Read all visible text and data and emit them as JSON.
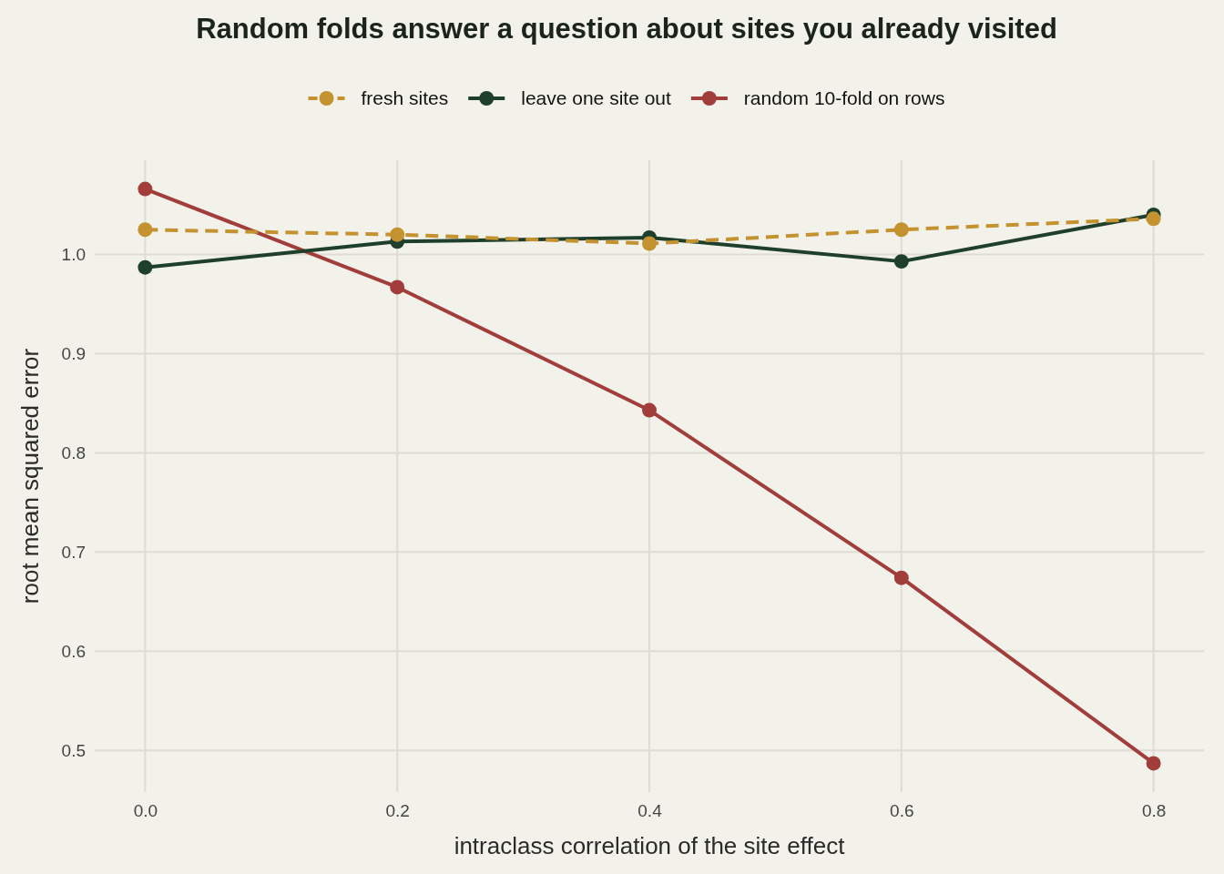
{
  "chart_data": {
    "type": "line",
    "title": "Random folds answer a question about sites you already visited",
    "xlabel": "intraclass correlation of the site effect",
    "ylabel": "root mean squared error",
    "x": [
      0,
      0.2,
      0.4,
      0.6,
      0.8
    ],
    "series": [
      {
        "name": "fresh sites",
        "color": "#c4922f",
        "line_style": "dashed",
        "values": [
          1.025,
          1.02,
          1.011,
          1.025,
          1.036
        ]
      },
      {
        "name": "leave one site out",
        "color": "#1f3f2d",
        "line_style": "solid",
        "values": [
          0.987,
          1.013,
          1.017,
          0.993,
          1.04
        ]
      },
      {
        "name": "random 10-fold on rows",
        "color": "#a13d3b",
        "line_style": "solid",
        "values": [
          1.066,
          0.967,
          0.843,
          0.674,
          0.487
        ]
      }
    ],
    "xlim": [
      -0.04,
      0.84
    ],
    "ylim": [
      0.458,
      1.095
    ],
    "xticks": [
      {
        "value": 0,
        "label": "0.0"
      },
      {
        "value": 0.2,
        "label": "0.2"
      },
      {
        "value": 0.4,
        "label": "0.4"
      },
      {
        "value": 0.6,
        "label": "0.6"
      },
      {
        "value": 0.8,
        "label": "0.8"
      }
    ],
    "yticks": [
      {
        "value": 0.5,
        "label": "0.5"
      },
      {
        "value": 0.6,
        "label": "0.6"
      },
      {
        "value": 0.7,
        "label": "0.7"
      },
      {
        "value": 0.8,
        "label": "0.8"
      },
      {
        "value": 0.9,
        "label": "0.9"
      },
      {
        "value": 1.0,
        "label": "1.0"
      }
    ],
    "grid": true,
    "legend": "top",
    "marker": "circle"
  }
}
